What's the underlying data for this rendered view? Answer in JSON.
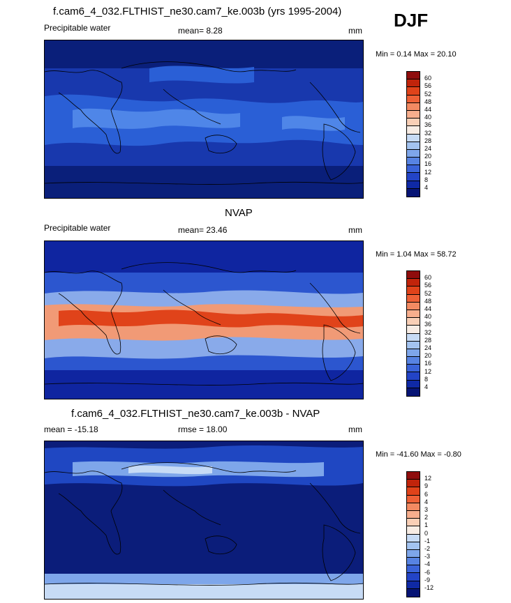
{
  "season": "DJF",
  "panels": [
    {
      "title": "f.cam6_4_032.FLTHIST_ne30.cam7_ke.003b (yrs 1995-2004)",
      "left_label": "Precipitable water",
      "center_label": "mean=  8.28",
      "units": "mm",
      "minmax": "Min =   0.14 Max =  20.10",
      "field_colors": [
        "#0a1f7a",
        "#1838ad",
        "#2a5fd6",
        "#4f86e8"
      ],
      "colorbar": {
        "labels": [
          "60",
          "56",
          "52",
          "48",
          "44",
          "40",
          "36",
          "32",
          "28",
          "24",
          "20",
          "16",
          "12",
          "8",
          "4"
        ],
        "colors": [
          "#8f0d0d",
          "#c1240b",
          "#e0431a",
          "#ee6036",
          "#f38a62",
          "#f7ae8d",
          "#f9cfb6",
          "#f7ece4",
          "#c7dbf5",
          "#a3c3f0",
          "#7ea6ea",
          "#5783e2",
          "#3a63d8",
          "#2344c7",
          "#0f29a5",
          "#071475"
        ]
      }
    },
    {
      "title": "NVAP",
      "left_label": "Precipitable water",
      "center_label": "mean=  23.46",
      "units": "mm",
      "minmax": "Min =   1.04 Max =  58.72",
      "field_colors": [
        "#0f25a0",
        "#2c56cf",
        "#89aaea",
        "#f19a76",
        "#e0431a"
      ],
      "colorbar": {
        "labels": [
          "60",
          "56",
          "52",
          "48",
          "44",
          "40",
          "36",
          "32",
          "28",
          "24",
          "20",
          "16",
          "12",
          "8",
          "4"
        ],
        "colors": [
          "#8f0d0d",
          "#c1240b",
          "#e0431a",
          "#ee6036",
          "#f38a62",
          "#f7ae8d",
          "#f9cfb6",
          "#f7ece4",
          "#c7dbf5",
          "#a3c3f0",
          "#7ea6ea",
          "#5783e2",
          "#3a63d8",
          "#2344c7",
          "#0f29a5",
          "#071475"
        ]
      }
    },
    {
      "title": "f.cam6_4_032.FLTHIST_ne30.cam7_ke.003b - NVAP",
      "left_label": "mean = -15.18",
      "center_label": "rmse =  18.00",
      "units": "mm",
      "minmax": "Min = -41.60 Max =  -0.80",
      "field_colors": [
        "#0b1d7a",
        "#1f47c2",
        "#7ea6ea",
        "#c7dbf5"
      ],
      "colorbar": {
        "labels": [
          "12",
          "9",
          "6",
          "4",
          "3",
          "2",
          "1",
          "0",
          "-1",
          "-2",
          "-3",
          "-4",
          "-6",
          "-9",
          "-12"
        ],
        "colors": [
          "#8f0d0d",
          "#c1240b",
          "#e0431a",
          "#ee6036",
          "#f38a62",
          "#f7ae8d",
          "#f9cfb6",
          "#f7ece4",
          "#c7dbf5",
          "#a3c3f0",
          "#7ea6ea",
          "#5783e2",
          "#3a63d8",
          "#2344c7",
          "#0f29a5",
          "#071475"
        ]
      }
    }
  ]
}
